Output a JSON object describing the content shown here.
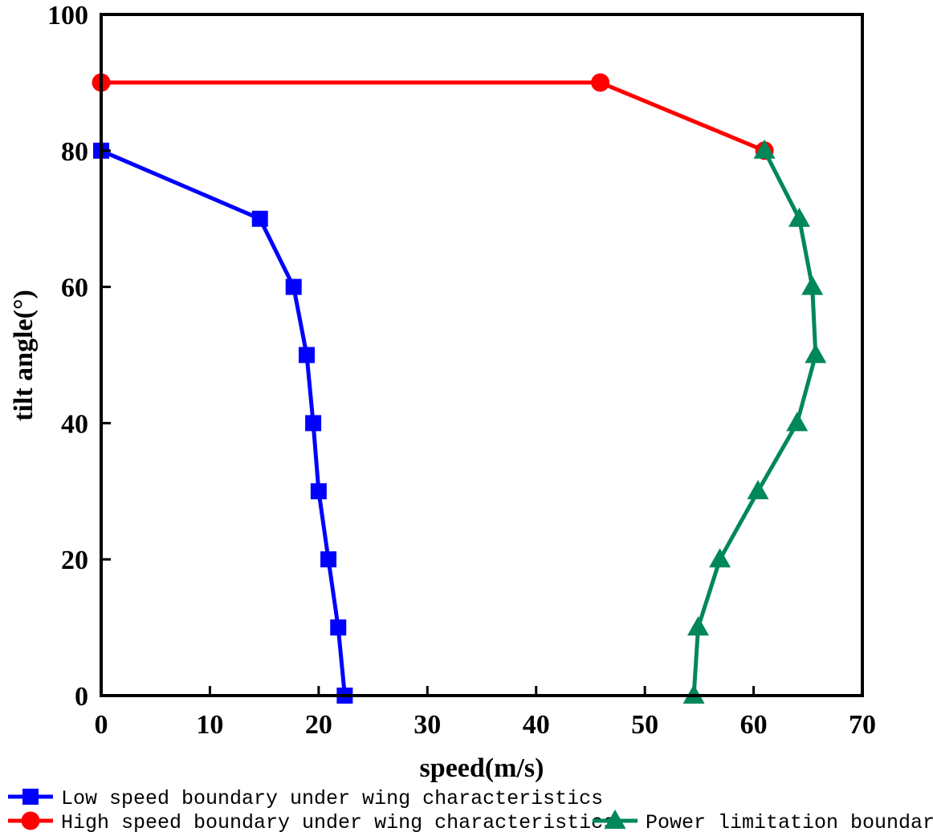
{
  "chart_data": {
    "type": "line",
    "title": "",
    "xlabel": "speed(m/s)",
    "ylabel": "tilt angle(°)",
    "xlim": [
      0,
      70
    ],
    "ylim": [
      0,
      100
    ],
    "xticks": [
      0,
      10,
      20,
      30,
      40,
      50,
      60,
      70
    ],
    "yticks": [
      0,
      20,
      40,
      60,
      80,
      100
    ],
    "grid": false,
    "legend_position": "bottom",
    "series": [
      {
        "name": "Low speed boundary under wing characteristics",
        "color": "#0000ff",
        "marker": "square",
        "points": [
          {
            "x": 0,
            "y": 80
          },
          {
            "x": 14.6,
            "y": 70
          },
          {
            "x": 17.7,
            "y": 60
          },
          {
            "x": 18.9,
            "y": 50
          },
          {
            "x": 19.5,
            "y": 40
          },
          {
            "x": 20.0,
            "y": 30
          },
          {
            "x": 20.9,
            "y": 20
          },
          {
            "x": 21.8,
            "y": 10
          },
          {
            "x": 22.4,
            "y": 0
          }
        ]
      },
      {
        "name": "High speed boundary under wing characteristics",
        "color": "#ff0000",
        "marker": "circle",
        "points": [
          {
            "x": 0,
            "y": 90
          },
          {
            "x": 45.9,
            "y": 90
          },
          {
            "x": 61.0,
            "y": 80
          }
        ]
      },
      {
        "name": "Power limitation boundary",
        "color": "#00875a",
        "marker": "triangle",
        "points": [
          {
            "x": 61.0,
            "y": 80
          },
          {
            "x": 64.2,
            "y": 70
          },
          {
            "x": 65.4,
            "y": 60
          },
          {
            "x": 65.7,
            "y": 50
          },
          {
            "x": 64.0,
            "y": 40
          },
          {
            "x": 60.4,
            "y": 30
          },
          {
            "x": 56.9,
            "y": 20
          },
          {
            "x": 54.9,
            "y": 10
          },
          {
            "x": 54.5,
            "y": 0
          }
        ]
      }
    ]
  }
}
